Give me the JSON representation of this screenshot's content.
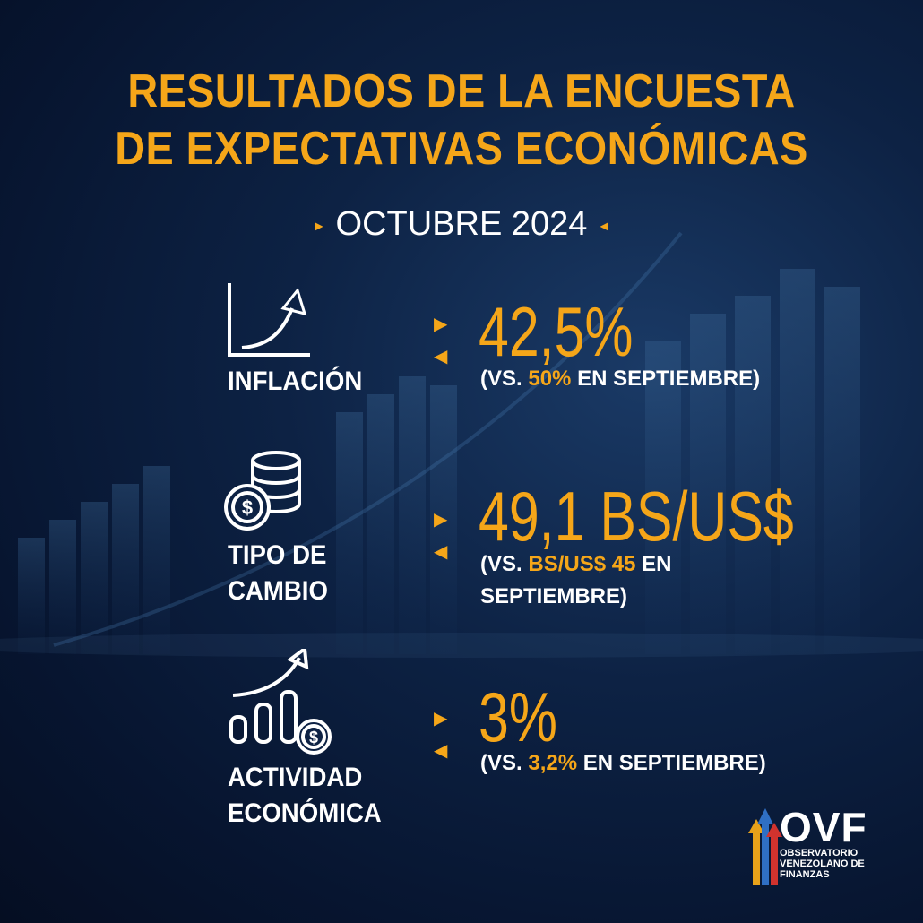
{
  "header": {
    "title_line1": "RESULTADOS DE LA ENCUESTA",
    "title_line2": "DE EXPECTATIVAS ECONÓMICAS",
    "period": "OCTUBRE 2024"
  },
  "indicators": [
    {
      "label_line1": "INFLACIÓN",
      "value": "42,5%",
      "compare_prefix": "(VS.",
      "compare_value": "50%",
      "compare_suffix": "EN SEPTIEMBRE)"
    },
    {
      "label_line1": "TIPO DE",
      "label_line2": "CAMBIO",
      "value": "49,1 BS/US$",
      "compare_prefix": "(VS.",
      "compare_value": "BS/US$ 45",
      "compare_suffix": "EN",
      "compare_line2": "SEPTIEMBRE)"
    },
    {
      "label_line1": "ACTIVIDAD",
      "label_line2": "ECONÓMICA",
      "value": "3%",
      "compare_prefix": "(VS.",
      "compare_value": "3,2%",
      "compare_suffix": "EN SEPTIEMBRE)"
    }
  ],
  "logo": {
    "abbr": "OVF",
    "line1": "OBSERVATORIO",
    "line2": "VENEZOLANO DE",
    "line3": "FINANZAS"
  },
  "colors": {
    "accent": "#f5a619",
    "text": "#ffffff",
    "background": "#0d2244"
  }
}
